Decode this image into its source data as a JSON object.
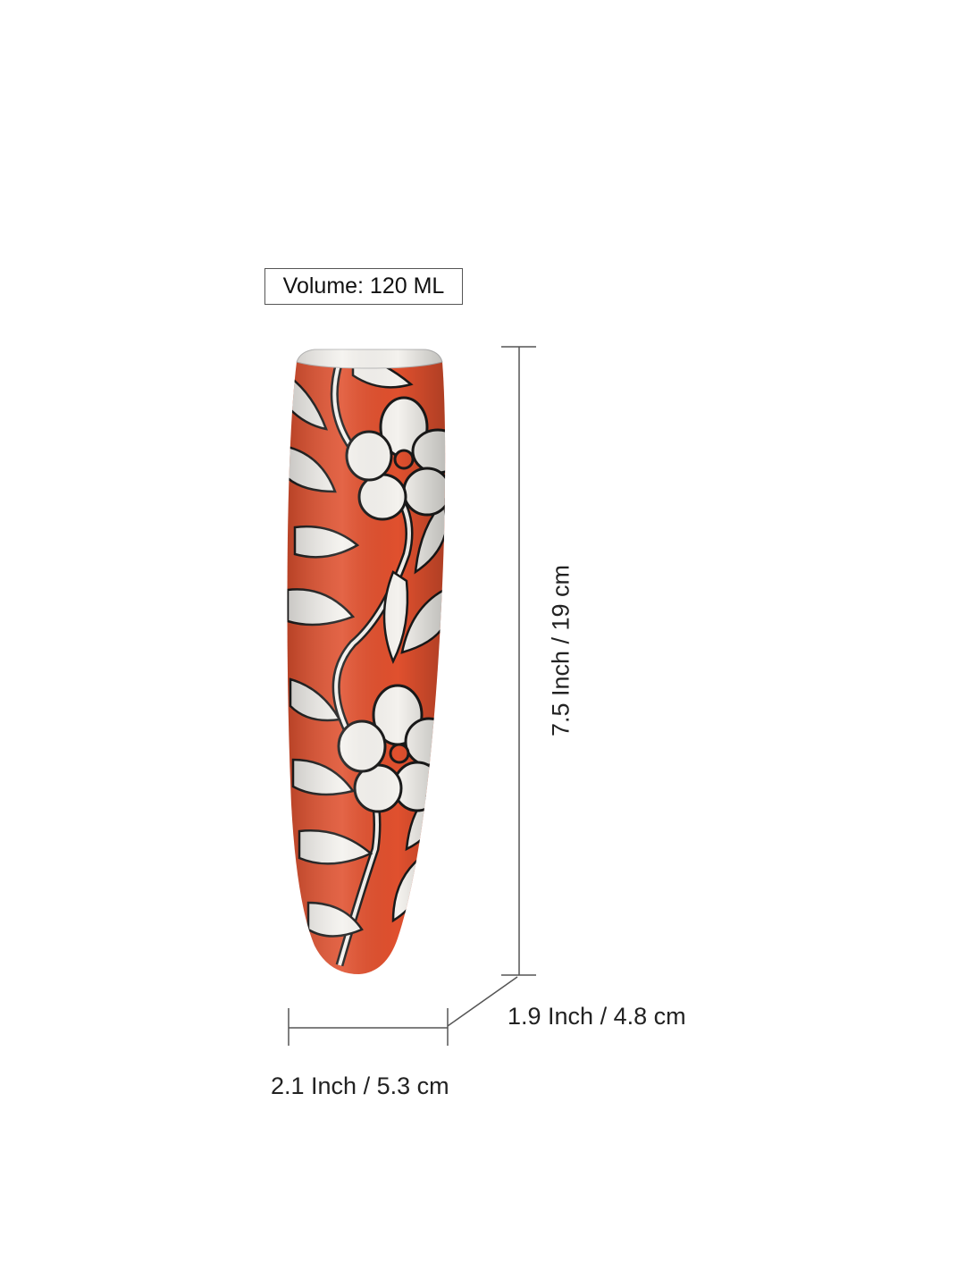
{
  "volume_label": "Volume: 120 ML",
  "dimensions": {
    "height": "7.5 Inch / 19 cm",
    "depth": "1.9 Inch / 4.8 cm",
    "width": "2.1 Inch / 5.3 cm"
  },
  "colors": {
    "vase_body": "#e0502e",
    "vase_pattern": "#f4f2ee",
    "outline": "#1a1a1a"
  }
}
